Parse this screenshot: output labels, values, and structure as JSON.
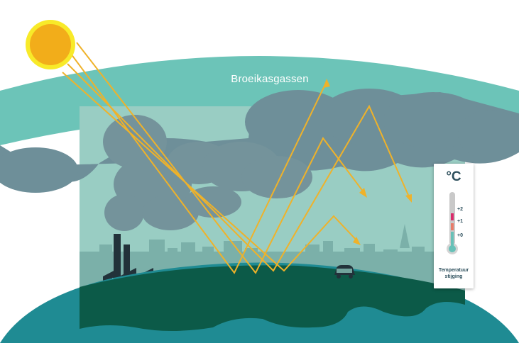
{
  "diagram": {
    "greenhouse_label": "Broeikasgassen",
    "thermometer": {
      "unit": "°C",
      "ticks": [
        "+2",
        "+1",
        "+0"
      ],
      "caption_line1": "Temperatuur",
      "caption_line2": "stijging"
    },
    "icons": [
      "sun-icon",
      "factory-icon",
      "car-icon",
      "thermometer-icon"
    ],
    "colors": {
      "sun": "#f2ad1a",
      "sun_glow": "#f8ea29",
      "ray": "#efb22a",
      "greenhouse_band": "#6cc4b8",
      "clouds": "#6e8f99",
      "sky": "#99cdc3",
      "earth_land": "#0c5a48",
      "earth_ocean": "#1f8b93",
      "city": "#7bb0a9"
    }
  }
}
